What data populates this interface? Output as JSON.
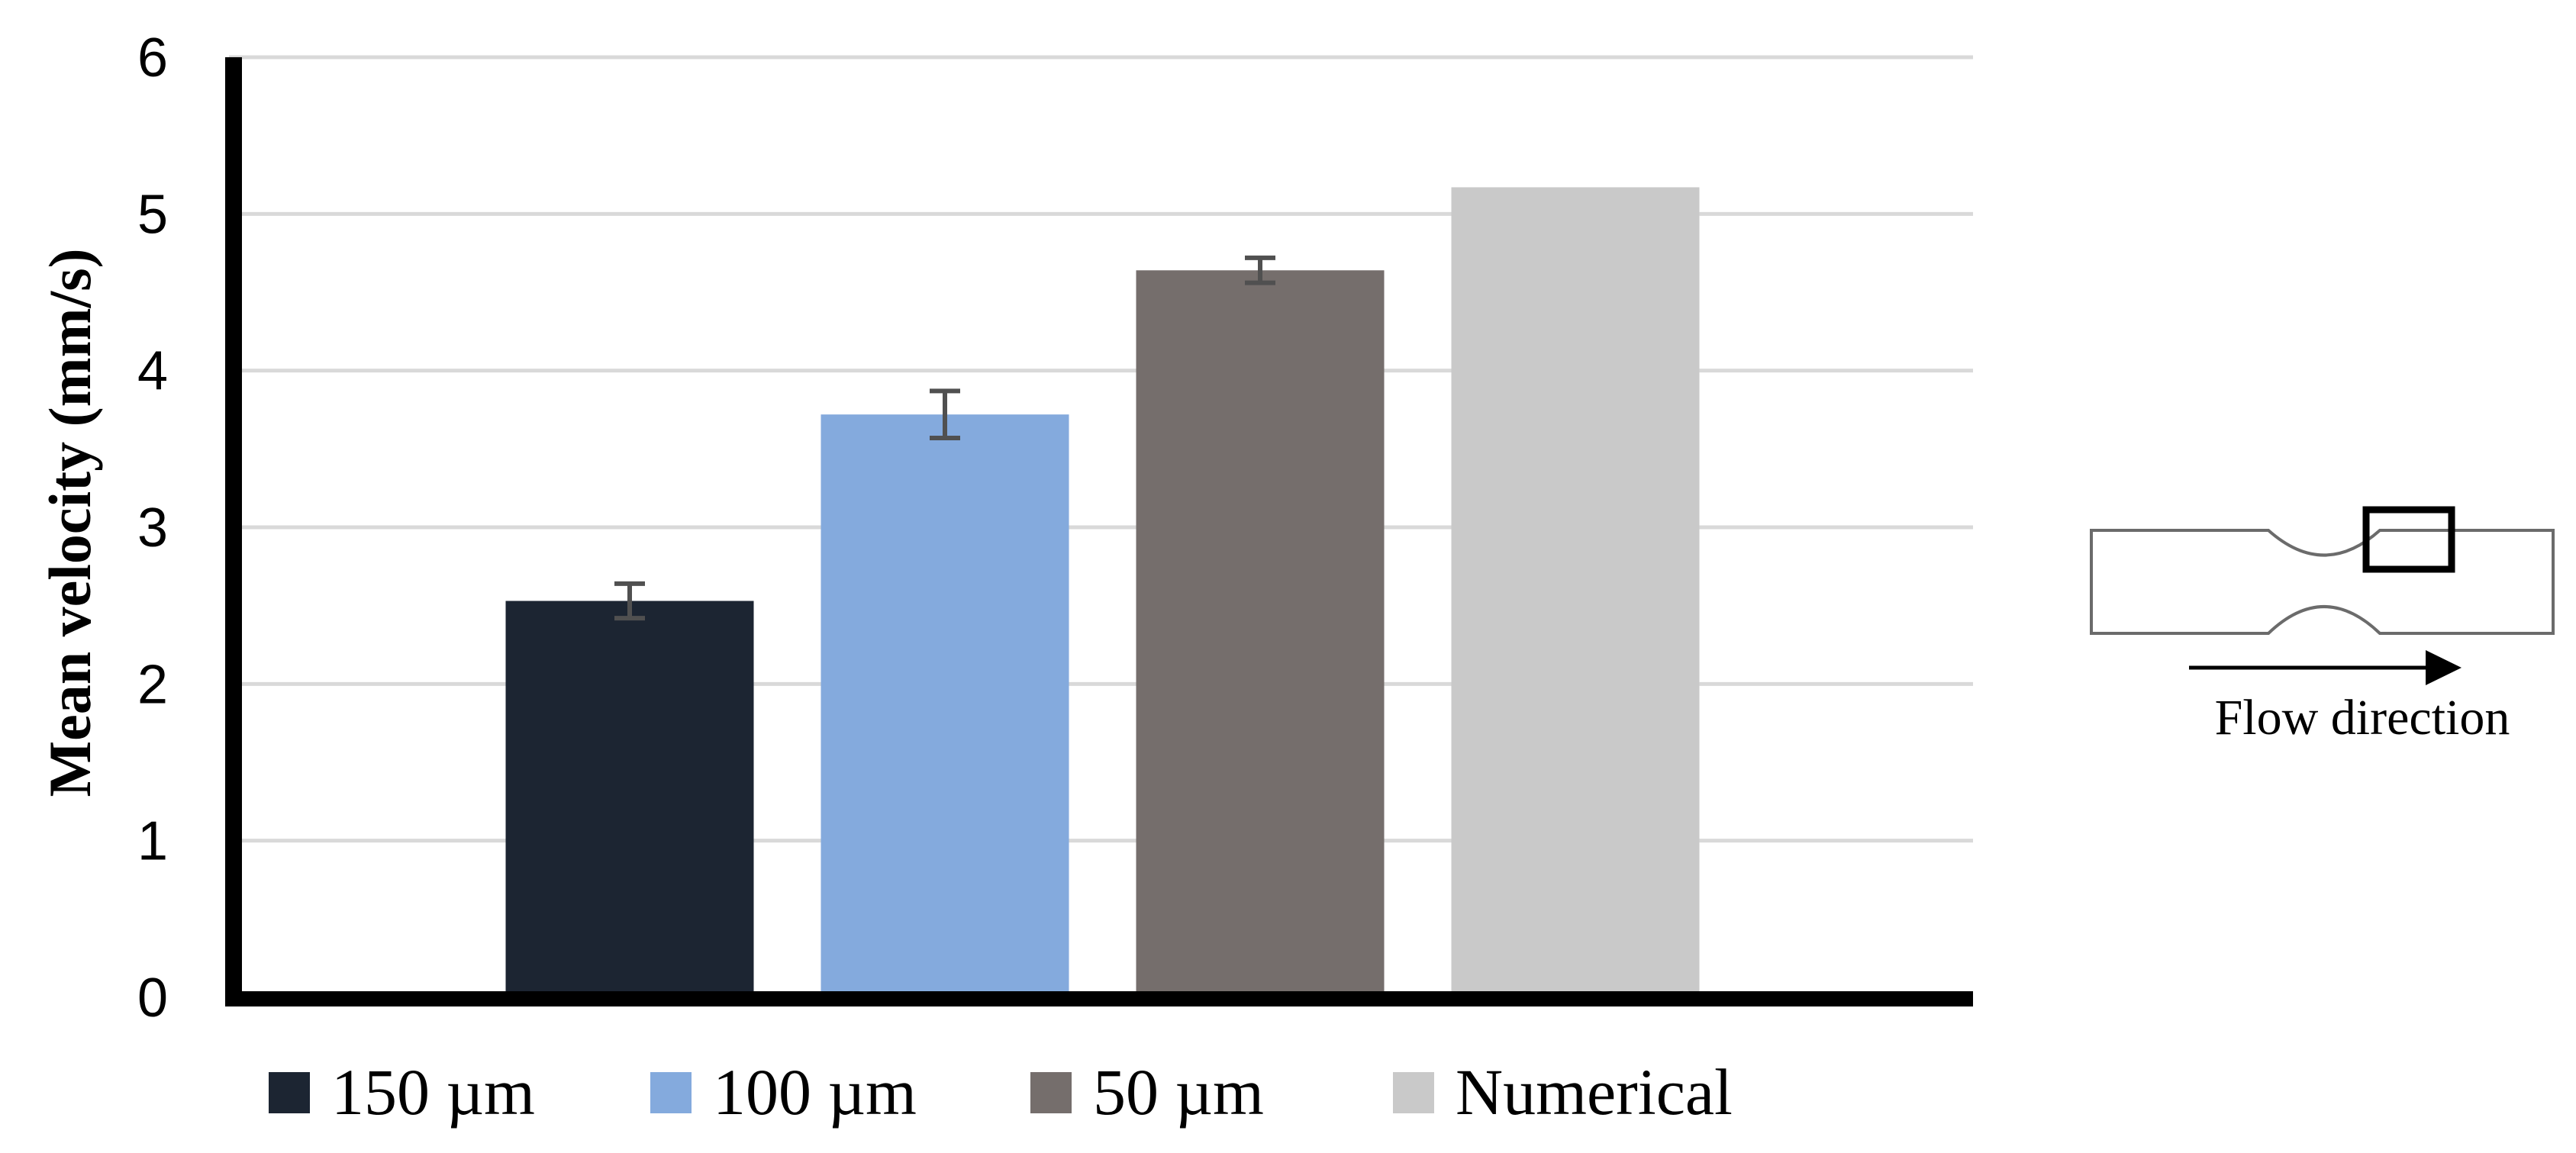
{
  "chart_data": {
    "type": "bar",
    "categories": [
      "150 µm",
      "100 µm",
      "50 µm",
      "Numerical"
    ],
    "values": [
      2.53,
      3.72,
      4.64,
      5.17
    ],
    "errors": [
      0.11,
      0.15,
      0.08,
      null
    ],
    "colors": [
      "#1c2532",
      "#84aadd",
      "#756e6c",
      "#c9c9c9"
    ],
    "error_bar_color": "#505050",
    "ylabel": "Mean velocity (mm/s)",
    "xlabel": "",
    "ylim": [
      0,
      6
    ],
    "yticks": [
      0,
      1,
      2,
      3,
      4,
      5,
      6
    ],
    "grid": true,
    "legend": {
      "placement": "bottom",
      "entries": [
        "150 µm",
        "100 µm",
        "50 µm",
        "Numerical"
      ]
    }
  },
  "inset": {
    "label": "Flow direction",
    "description_icon": "channel-constriction-schematic"
  }
}
